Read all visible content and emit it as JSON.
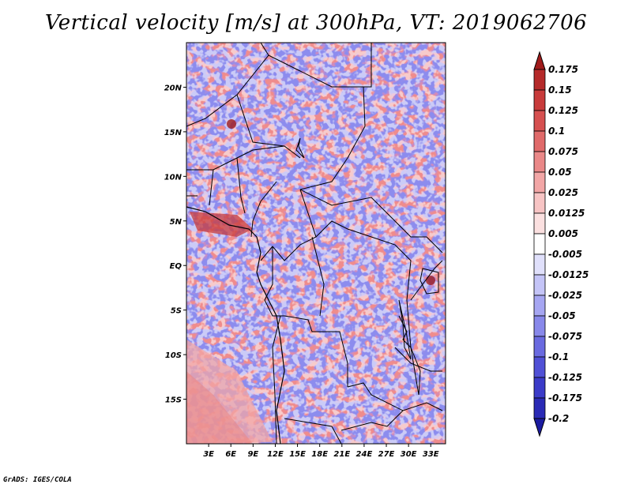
{
  "title": "Vertical velocity [m/s] at 300hPa, VT: 2019062706",
  "credit": "GrADS: IGES/COLA",
  "map": {
    "lat_labels": [
      "20N",
      "15N",
      "10N",
      "5N",
      "EQ",
      "5S",
      "10S",
      "15S"
    ],
    "lat_values": [
      20,
      15,
      10,
      5,
      0,
      -5,
      -10,
      -15
    ],
    "lon_labels": [
      "3E",
      "6E",
      "9E",
      "12E",
      "15E",
      "18E",
      "21E",
      "24E",
      "27E",
      "30E",
      "33E"
    ],
    "lon_values": [
      3,
      6,
      9,
      12,
      15,
      18,
      21,
      24,
      27,
      30,
      33
    ],
    "lon_range": [
      0,
      35
    ],
    "lat_range": [
      -20,
      25
    ]
  },
  "colorbar": {
    "labels": [
      "0.175",
      "0.15",
      "0.125",
      "0.1",
      "0.075",
      "0.05",
      "0.025",
      "0.0125",
      "0.005",
      "-0.005",
      "-0.0125",
      "-0.025",
      "-0.05",
      "-0.075",
      "-0.1",
      "-0.125",
      "-0.175",
      "-0.2"
    ],
    "colors": [
      "#a01b1b",
      "#b52a2a",
      "#c83b3b",
      "#d65050",
      "#e06a6a",
      "#ea8888",
      "#f2a6a6",
      "#f7c4c4",
      "#fbe0e0",
      "#ffffff",
      "#e0e0fb",
      "#c4c4f7",
      "#a6a6f2",
      "#8888ea",
      "#6a6ae0",
      "#5050d6",
      "#3b3bc8",
      "#2a2ab5",
      "#1b1ba0"
    ]
  },
  "field_colors": {
    "positive": "#ee8e8e",
    "negative": "#8f8fee",
    "neutral": "#ffffff"
  }
}
